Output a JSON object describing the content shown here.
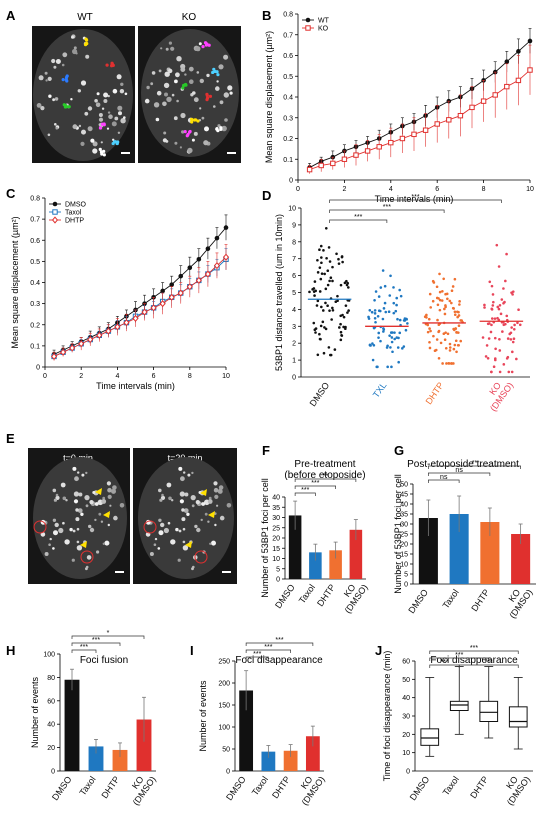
{
  "colors": {
    "black": "#111111",
    "red": "#e0302e",
    "blue": "#1f78c1",
    "orange": "#f07030",
    "pink": "#e8455a"
  },
  "panels": {
    "A": {
      "label": "A",
      "titles": [
        "WT",
        "KO"
      ]
    },
    "E": {
      "label": "E",
      "titles": [
        "t=0 min",
        "t=20 min"
      ]
    }
  },
  "chart_data": [
    {
      "id": "B",
      "label": "B",
      "type": "line",
      "xlabel": "Time intervals (min)",
      "ylabel": "Mean square displacement (µm²)",
      "xlim": [
        0,
        10
      ],
      "ylim": [
        0,
        0.8
      ],
      "xticks": [
        0,
        2,
        4,
        6,
        8,
        10
      ],
      "yticks": [
        0,
        0.1,
        0.2,
        0.3,
        0.4,
        0.5,
        0.6,
        0.7,
        0.8
      ],
      "ytick_labels": [
        "0",
        "0.1",
        "0.2",
        "0.3",
        "0.4",
        "0.5",
        "0.6",
        "0.7",
        "0.8"
      ],
      "legend_position": "top-left",
      "x": [
        0.5,
        1,
        1.5,
        2,
        2.5,
        3,
        3.5,
        4,
        4.5,
        5,
        5.5,
        6,
        6.5,
        7,
        7.5,
        8,
        8.5,
        9,
        9.5,
        10
      ],
      "series": [
        {
          "name": "WT",
          "color": "#111111",
          "marker": "circle",
          "values": [
            0.06,
            0.09,
            0.11,
            0.14,
            0.16,
            0.18,
            0.2,
            0.23,
            0.26,
            0.28,
            0.31,
            0.35,
            0.38,
            0.4,
            0.44,
            0.48,
            0.52,
            0.57,
            0.62,
            0.67
          ],
          "err": [
            0.02,
            0.02,
            0.03,
            0.03,
            0.03,
            0.03,
            0.04,
            0.04,
            0.04,
            0.04,
            0.05,
            0.05,
            0.05,
            0.05,
            0.05,
            0.05,
            0.05,
            0.05,
            0.06,
            0.06
          ]
        },
        {
          "name": "KO",
          "color": "#e0302e",
          "marker": "square",
          "values": [
            0.05,
            0.07,
            0.08,
            0.1,
            0.12,
            0.14,
            0.16,
            0.18,
            0.2,
            0.22,
            0.24,
            0.27,
            0.29,
            0.31,
            0.35,
            0.38,
            0.41,
            0.45,
            0.48,
            0.53
          ],
          "err": [
            0.02,
            0.03,
            0.03,
            0.04,
            0.05,
            0.05,
            0.06,
            0.07,
            0.07,
            0.08,
            0.08,
            0.09,
            0.09,
            0.1,
            0.1,
            0.1,
            0.11,
            0.11,
            0.12,
            0.12
          ]
        }
      ]
    },
    {
      "id": "C",
      "label": "C",
      "type": "line",
      "xlabel": "Time intervals (min)",
      "ylabel": "Mean square displacement (µm²)",
      "xlim": [
        0,
        10
      ],
      "ylim": [
        0,
        0.8
      ],
      "xticks": [
        0,
        2,
        4,
        6,
        8,
        10
      ],
      "yticks": [
        0,
        0.1,
        0.2,
        0.3,
        0.4,
        0.5,
        0.6,
        0.7,
        0.8
      ],
      "ytick_labels": [
        "0",
        "0.1",
        "0.2",
        "0.3",
        "0.4",
        "0.5",
        "0.6",
        "0.7",
        "0.8"
      ],
      "legend_position": "top-left",
      "x": [
        0.5,
        1,
        1.5,
        2,
        2.5,
        3,
        3.5,
        4,
        4.5,
        5,
        5.5,
        6,
        6.5,
        7,
        7.5,
        8,
        8.5,
        9,
        9.5,
        10
      ],
      "series": [
        {
          "name": "DMSO",
          "color": "#111111",
          "marker": "circle",
          "values": [
            0.06,
            0.08,
            0.1,
            0.12,
            0.14,
            0.16,
            0.18,
            0.21,
            0.24,
            0.27,
            0.3,
            0.33,
            0.36,
            0.39,
            0.43,
            0.47,
            0.51,
            0.56,
            0.61,
            0.66
          ],
          "err": [
            0.02,
            0.02,
            0.02,
            0.02,
            0.03,
            0.03,
            0.03,
            0.03,
            0.03,
            0.04,
            0.04,
            0.04,
            0.04,
            0.04,
            0.05,
            0.05,
            0.05,
            0.05,
            0.05,
            0.06
          ]
        },
        {
          "name": "Taxol",
          "color": "#1f78c1",
          "marker": "square",
          "values": [
            0.05,
            0.07,
            0.09,
            0.11,
            0.13,
            0.15,
            0.17,
            0.19,
            0.21,
            0.24,
            0.26,
            0.28,
            0.31,
            0.33,
            0.35,
            0.38,
            0.41,
            0.44,
            0.47,
            0.51
          ],
          "err": [
            0.01,
            0.01,
            0.02,
            0.02,
            0.02,
            0.02,
            0.03,
            0.03,
            0.03,
            0.03,
            0.03,
            0.03,
            0.04,
            0.04,
            0.04,
            0.04,
            0.04,
            0.04,
            0.04,
            0.05
          ]
        },
        {
          "name": "DHTP",
          "color": "#e0302e",
          "marker": "diamond",
          "values": [
            0.05,
            0.07,
            0.09,
            0.11,
            0.13,
            0.15,
            0.17,
            0.19,
            0.21,
            0.23,
            0.26,
            0.28,
            0.3,
            0.33,
            0.35,
            0.38,
            0.41,
            0.44,
            0.48,
            0.52
          ],
          "err": [
            0.02,
            0.02,
            0.02,
            0.03,
            0.03,
            0.03,
            0.03,
            0.04,
            0.04,
            0.04,
            0.04,
            0.05,
            0.05,
            0.05,
            0.05,
            0.05,
            0.06,
            0.06,
            0.06,
            0.06
          ]
        }
      ]
    },
    {
      "id": "D",
      "label": "D",
      "type": "scatter",
      "ylabel": "53BP1 distance travelled (um in 10min)",
      "ylim": [
        0,
        10
      ],
      "yticks": [
        0,
        1,
        2,
        3,
        4,
        5,
        6,
        7,
        8,
        9,
        10
      ],
      "categories": [
        "DMSO",
        "TXL",
        "DHTP",
        "KO (DMSO)"
      ],
      "category_colors": [
        "#111111",
        "#1f78c1",
        "#f07030",
        "#e8455a"
      ],
      "medians": [
        4.6,
        3.0,
        3.2,
        3.3
      ],
      "spread": [
        [
          1.3,
          8.8
        ],
        [
          0.6,
          6.3
        ],
        [
          0.8,
          6.1
        ],
        [
          0.3,
          7.8
        ]
      ],
      "n_points": [
        90,
        80,
        95,
        75
      ],
      "significance": [
        {
          "from": 0,
          "to": 1,
          "label": "***"
        },
        {
          "from": 0,
          "to": 2,
          "label": "***"
        },
        {
          "from": 0,
          "to": 3,
          "label": "***"
        }
      ]
    },
    {
      "id": "F",
      "label": "F",
      "type": "bar",
      "title": "Pre-treatment",
      "subtitle": "(before etoposide)",
      "ylabel": "Number of 53BP1 foci per cell",
      "ylim": [
        0,
        40
      ],
      "yticks": [
        0,
        5,
        10,
        15,
        20,
        25,
        30,
        35,
        40
      ],
      "categories": [
        "DMSO",
        "Taxol",
        "DHTP",
        "KO (DMSO)"
      ],
      "values": [
        31,
        13,
        14,
        24
      ],
      "err": [
        7,
        4,
        4,
        5
      ],
      "bar_colors": [
        "#111111",
        "#1f78c1",
        "#f07030",
        "#e0302e"
      ],
      "significance": [
        {
          "from": 0,
          "to": 1,
          "label": "***"
        },
        {
          "from": 0,
          "to": 2,
          "label": "***"
        },
        {
          "from": 0,
          "to": 3,
          "label": "**"
        }
      ]
    },
    {
      "id": "G",
      "label": "G",
      "type": "bar",
      "title": "Post-etoposide treatment",
      "ylabel": "Number of 53BP1 foci per cell",
      "ylim": [
        0,
        50
      ],
      "yticks": [
        0,
        5,
        10,
        15,
        20,
        25,
        30,
        35,
        40,
        45,
        50
      ],
      "categories": [
        "DMSO",
        "Taxol",
        "DHTP",
        "KO (DMSO)"
      ],
      "values": [
        33,
        35,
        31,
        25
      ],
      "err": [
        9,
        9,
        7,
        5
      ],
      "bar_colors": [
        "#111111",
        "#1f78c1",
        "#f07030",
        "#e0302e"
      ],
      "significance": [
        {
          "from": 0,
          "to": 1,
          "label": "ns"
        },
        {
          "from": 0,
          "to": 2,
          "label": "ns"
        },
        {
          "from": 0,
          "to": 3,
          "label": "**"
        }
      ]
    },
    {
      "id": "H",
      "label": "H",
      "type": "bar",
      "title": "Foci fusion",
      "ylabel": "Number of events",
      "ylim": [
        0,
        100
      ],
      "yticks": [
        0,
        20,
        40,
        60,
        80,
        100
      ],
      "categories": [
        "DMSO",
        "Taxol",
        "DHTP",
        "KO (DMSO)"
      ],
      "values": [
        78,
        21,
        18,
        44
      ],
      "err": [
        9,
        6,
        6,
        19
      ],
      "bar_colors": [
        "#111111",
        "#1f78c1",
        "#f07030",
        "#e0302e"
      ],
      "significance": [
        {
          "from": 0,
          "to": 1,
          "label": "***"
        },
        {
          "from": 0,
          "to": 2,
          "label": "***"
        },
        {
          "from": 0,
          "to": 3,
          "label": "*"
        }
      ]
    },
    {
      "id": "I",
      "label": "I",
      "type": "bar",
      "title": "Foci disappearance",
      "ylabel": "Number of events",
      "ylim": [
        0,
        250
      ],
      "yticks": [
        0,
        50,
        100,
        150,
        200,
        250
      ],
      "categories": [
        "DMSO",
        "Taxol",
        "DHTP",
        "KO (DMSO)"
      ],
      "values": [
        183,
        44,
        46,
        79
      ],
      "err": [
        45,
        14,
        14,
        23
      ],
      "bar_colors": [
        "#111111",
        "#1f78c1",
        "#f07030",
        "#e0302e"
      ],
      "significance": [
        {
          "from": 0,
          "to": 1,
          "label": "***"
        },
        {
          "from": 0,
          "to": 2,
          "label": "***"
        },
        {
          "from": 0,
          "to": 3,
          "label": "***"
        }
      ]
    },
    {
      "id": "J",
      "label": "J",
      "type": "box",
      "title": "Foci disappearance",
      "ylabel": "Time of foci disappearance (min)",
      "ylim": [
        0,
        60
      ],
      "yticks": [
        0,
        10,
        20,
        30,
        40,
        50,
        60
      ],
      "categories": [
        "DMSO",
        "Taxol",
        "DHTP",
        "KO (DMSO)"
      ],
      "boxes": [
        {
          "min": 8,
          "q1": 14,
          "median": 18,
          "q3": 23,
          "max": 51
        },
        {
          "min": 20,
          "q1": 33,
          "median": 36,
          "q3": 38,
          "max": 57
        },
        {
          "min": 18,
          "q1": 27,
          "median": 32,
          "q3": 38,
          "max": 57
        },
        {
          "min": 12,
          "q1": 24,
          "median": 27,
          "q3": 35,
          "max": 51
        }
      ],
      "significance": [
        {
          "from": 0,
          "to": 1,
          "label": "***"
        },
        {
          "from": 0,
          "to": 2,
          "label": "***"
        },
        {
          "from": 0,
          "to": 3,
          "label": "***"
        },
        {
          "from": 1,
          "to": 3,
          "label": "***"
        }
      ]
    }
  ]
}
